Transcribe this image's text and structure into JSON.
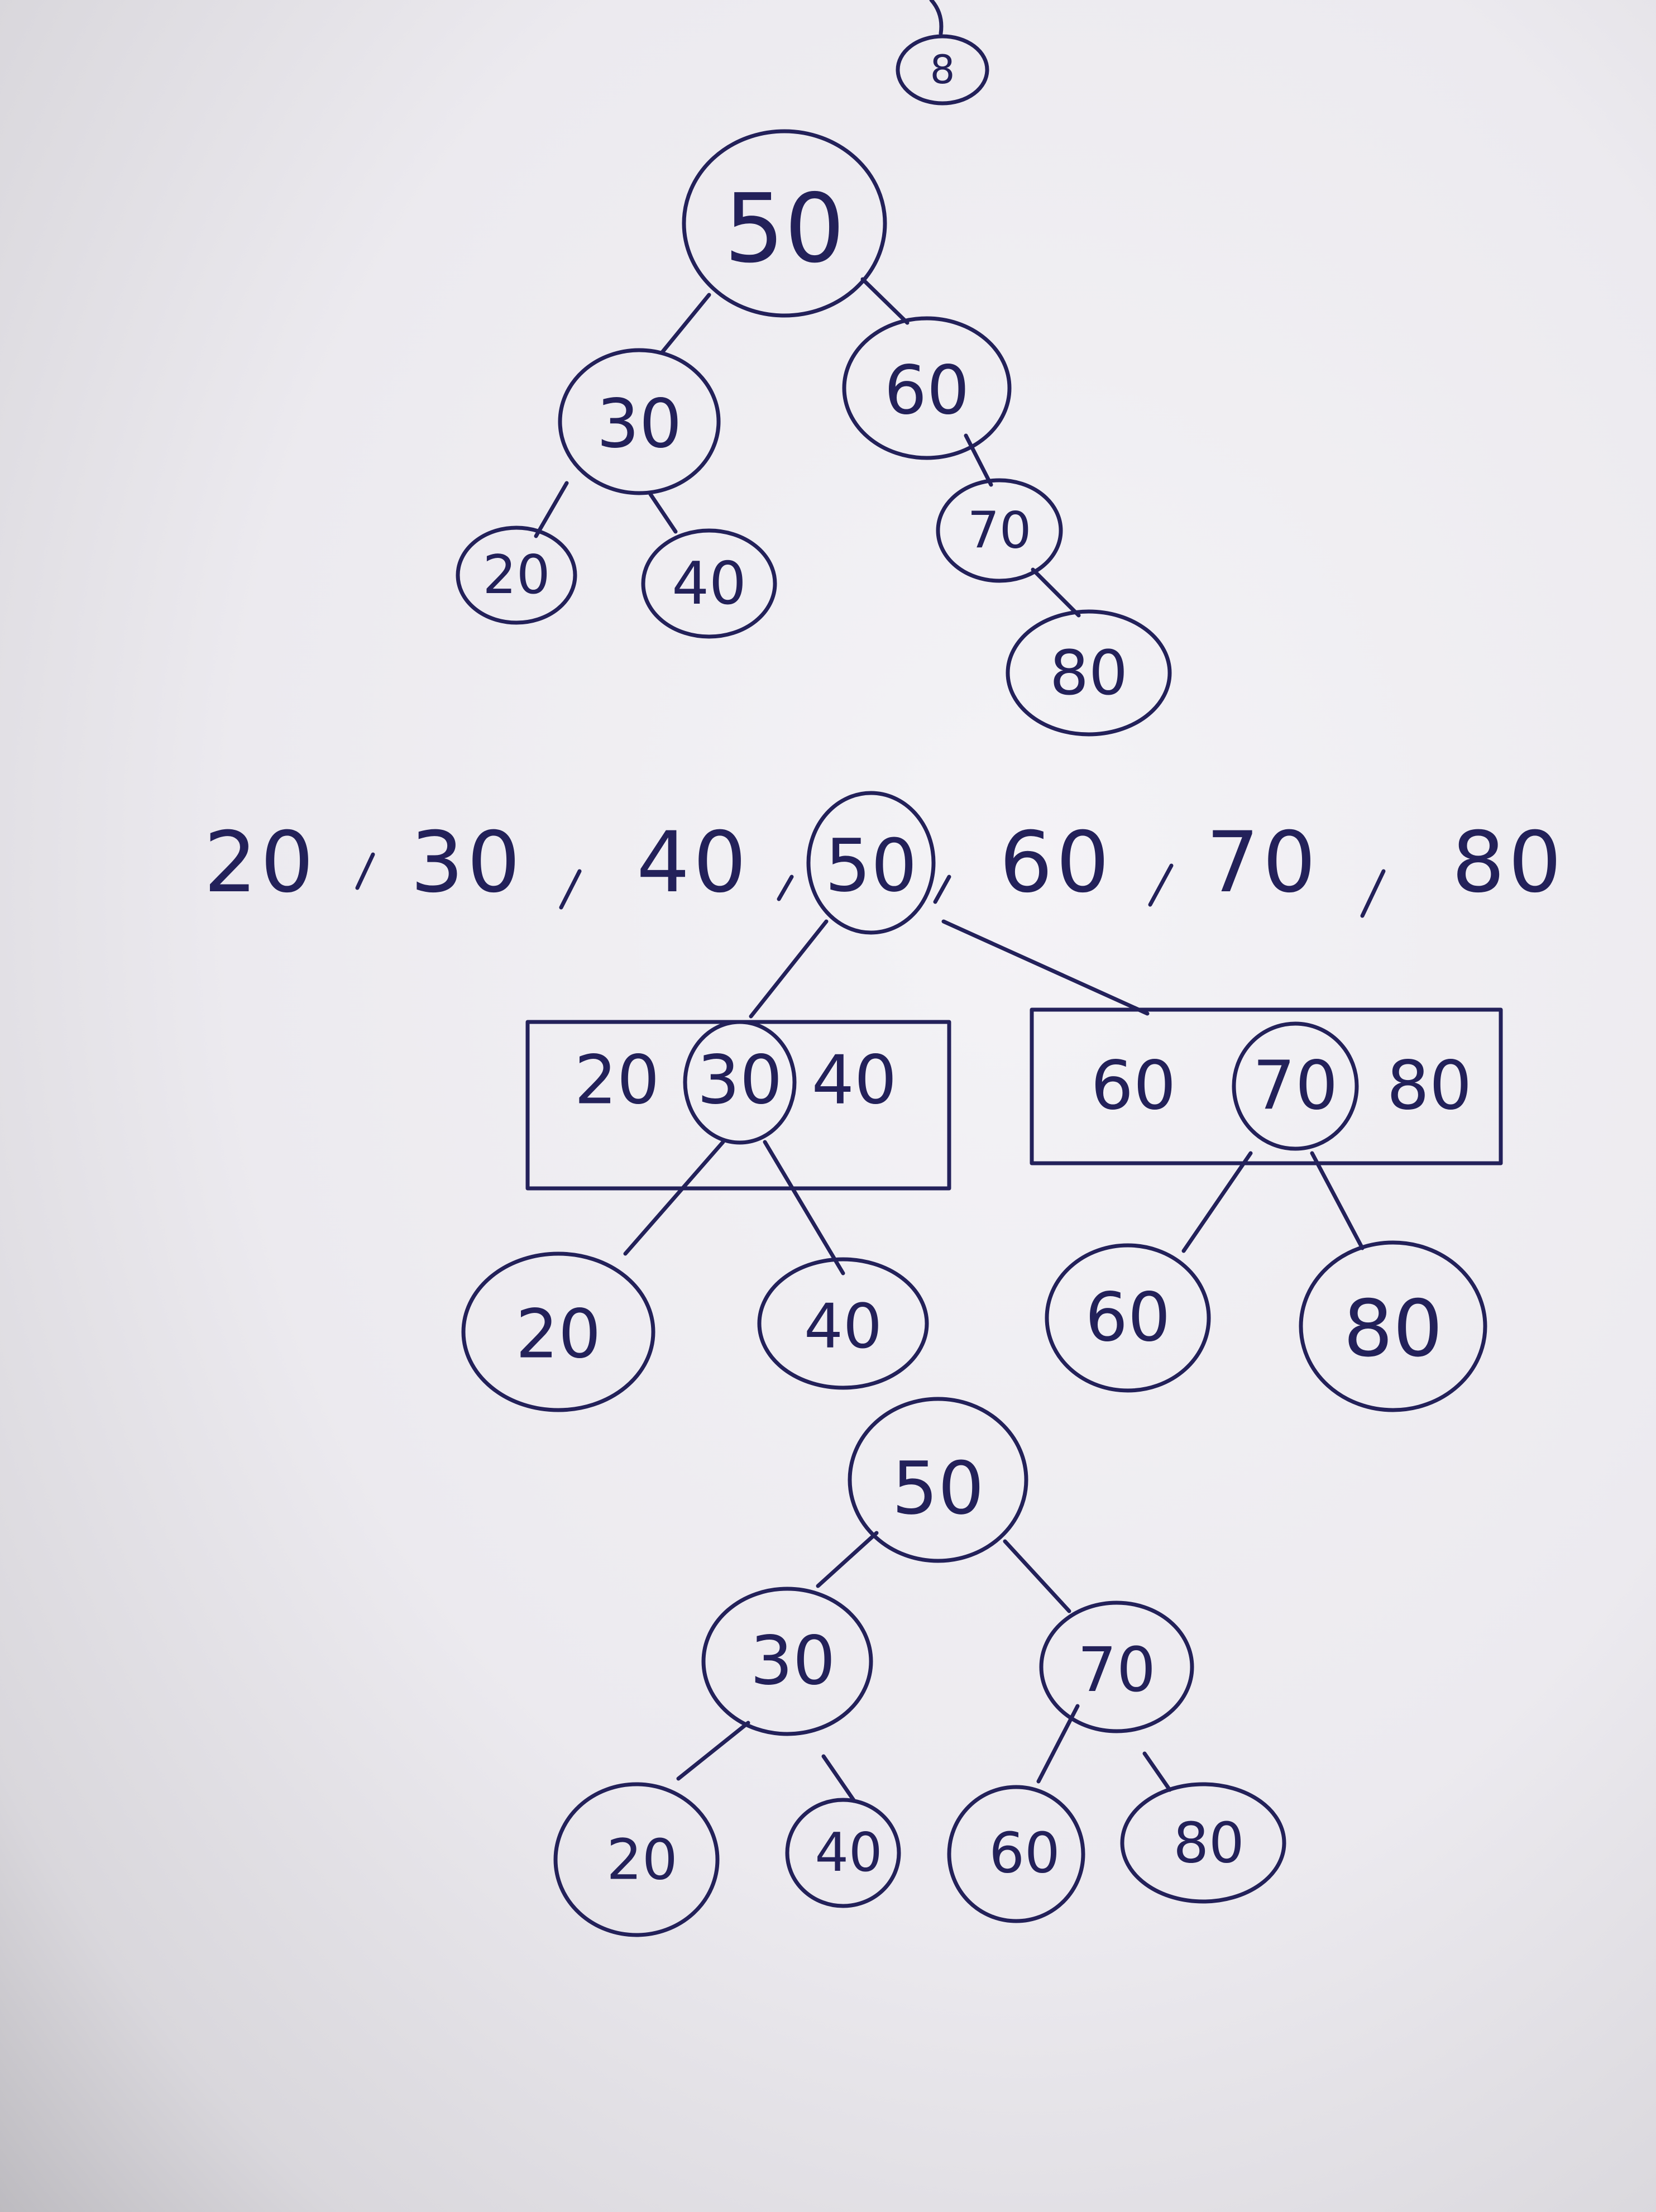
{
  "sequence": {
    "items": [
      "20",
      "30",
      "40",
      "50",
      "60",
      "70",
      "80"
    ]
  },
  "tree1": {
    "top_fragment": "8",
    "root": "50",
    "left": "30",
    "right": "60",
    "left_left": "20",
    "left_right": "40",
    "right_right": "70",
    "right_right_right": "80"
  },
  "split": {
    "left_group": [
      "20",
      "30",
      "40"
    ],
    "right_group": [
      "60",
      "70",
      "80"
    ],
    "children": [
      "20",
      "40",
      "60",
      "80"
    ]
  },
  "tree2": {
    "root": "50",
    "left": "30",
    "right": "70",
    "leaves": [
      "20",
      "40",
      "60",
      "80"
    ]
  }
}
